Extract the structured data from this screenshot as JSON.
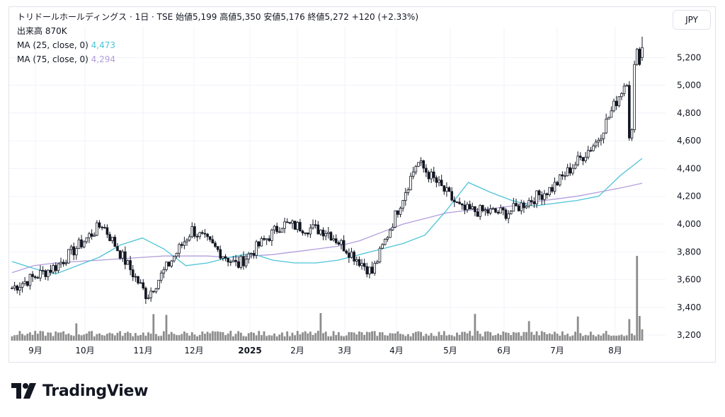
{
  "header": {
    "title_line": "トリドールホールディングス · 1日 · TSE  始値5,199  高値5,350  安値5,176  終値5,272  +120 (+2.33%)",
    "volume_label": "出来高  870K",
    "ma25_label": "MA (25, close, 0)",
    "ma25_value": "4,473",
    "ma75_label": "MA (75, close, 0)",
    "ma75_value": "4,294"
  },
  "currency_button": "JPY",
  "brand": "TradingView",
  "colors": {
    "up": "#ffffff",
    "down": "#131722",
    "ma25": "#4dc4d8",
    "ma75": "#b39ddb",
    "volume": "#8c8c8c",
    "grid": "#f0f3fa"
  },
  "chart_data": {
    "type": "candlestick",
    "symbol": "トリドールホールディングス",
    "interval": "1日",
    "exchange": "TSE",
    "last": {
      "open": 5199,
      "high": 5350,
      "low": 5176,
      "close": 5272,
      "change": 120,
      "change_pct": 2.33,
      "volume": "870K"
    },
    "y_ticks": [
      "5,200",
      "5,000",
      "4,800",
      "4,600",
      "4,400",
      "4,200",
      "4,000",
      "3,800",
      "3,600",
      "3,400",
      "3,200"
    ],
    "y_tick_values": [
      5200,
      5000,
      4800,
      4600,
      4400,
      4200,
      4000,
      3800,
      3600,
      3400,
      3200
    ],
    "x_ticks": [
      "9月",
      "10月",
      "11月",
      "12月",
      "2025",
      "2月",
      "3月",
      "4月",
      "5月",
      "6月",
      "7月",
      "8月"
    ],
    "ylim": [
      3170,
      5370
    ],
    "key_points": [
      {
        "date": "9月 start",
        "close": 3540
      },
      {
        "date": "10月",
        "close": 3700
      },
      {
        "date": "11月 high",
        "close": 4000
      },
      {
        "date": "11月 drop",
        "close": 3480
      },
      {
        "date": "12月",
        "close": 3960
      },
      {
        "date": "2025",
        "close": 3700
      },
      {
        "date": "2月",
        "close": 4000
      },
      {
        "date": "3月",
        "close": 3950
      },
      {
        "date": "4月 low",
        "close": 3650
      },
      {
        "date": "4月 high",
        "close": 4450
      },
      {
        "date": "5月",
        "close": 4100
      },
      {
        "date": "6月",
        "close": 4080
      },
      {
        "date": "7月",
        "close": 4260
      },
      {
        "date": "8月",
        "close": 4600
      },
      {
        "date": "8月 last",
        "close": 5272
      }
    ],
    "ma25_points": [
      3730,
      3680,
      3640,
      3700,
      3760,
      3850,
      3900,
      3820,
      3700,
      3720,
      3760,
      3790,
      3740,
      3720,
      3720,
      3740,
      3780,
      3820,
      3860,
      3920,
      4100,
      4300,
      4230,
      4170,
      4130,
      4150,
      4170,
      4200,
      4350,
      4473
    ],
    "ma75_points": [
      3650,
      3700,
      3720,
      3730,
      3740,
      3750,
      3760,
      3770,
      3770,
      3770,
      3760,
      3770,
      3780,
      3800,
      3820,
      3840,
      3880,
      3940,
      4000,
      4040,
      4080,
      4100,
      4110,
      4130,
      4160,
      4180,
      4200,
      4230,
      4260,
      4294
    ]
  }
}
